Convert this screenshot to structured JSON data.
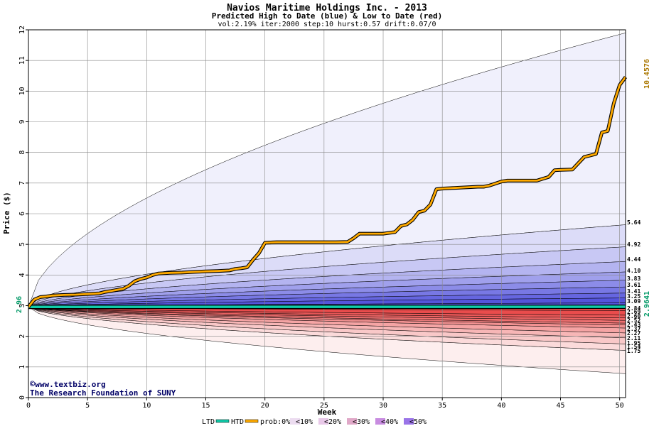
{
  "chart_data": {
    "type": "area",
    "title": "Navios Maritime Holdings Inc. - 2013",
    "subtitle": "Predicted High to Date (blue) &  Low to Date (red)",
    "params": "vol:2.19% iter:2000 step:10 hurst:0.57 drift:0.07/0",
    "xlabel": "Week",
    "ylabel": "Price ($)",
    "xlim": [
      0,
      50.5
    ],
    "ylim": [
      0,
      12
    ],
    "x_ticks": [
      0,
      5,
      10,
      15,
      20,
      25,
      30,
      35,
      40,
      45,
      50
    ],
    "y_ticks": [
      0,
      1,
      2,
      3,
      4,
      5,
      6,
      7,
      8,
      9,
      10,
      11,
      12
    ],
    "grid": true,
    "start_price": 2.96,
    "start_label": "2.96",
    "htd_label": "10.4576",
    "ltd_label": "2.9641",
    "htd_color": "#aa7700",
    "ltd_color": "#009966",
    "right_labels": [
      "5.64",
      "4.92",
      "4.44",
      "4.10",
      "3.83",
      "3.61",
      "3.41",
      "3.25",
      "3.09",
      "2.84",
      "2.69",
      "2.60",
      "2.52",
      "2.43",
      "2.37",
      "2.27",
      "2.11",
      "1.95",
      "1.75",
      "1.54"
    ],
    "upper_bands_final": [
      11.9,
      5.64,
      4.92,
      4.44,
      4.1,
      3.83,
      3.61,
      3.41,
      3.25,
      3.09
    ],
    "lower_bands_final": [
      0.78,
      1.54,
      1.75,
      1.95,
      2.11,
      2.27,
      2.37,
      2.43,
      2.52,
      2.6,
      2.69,
      2.84
    ],
    "upper_colors": [
      "#f0f0fc",
      "#dcdcf8",
      "#c8c8f4",
      "#b4b4f0",
      "#a0a0ec",
      "#8c8ce8",
      "#7878e4",
      "#6666e0",
      "#5555dc"
    ],
    "lower_colors": [
      "#fdeeee",
      "#fbdada",
      "#f9c8c8",
      "#f7b6b6",
      "#f5a4a4",
      "#f39292",
      "#f18080",
      "#ef7070",
      "#ed6464",
      "#eb5858",
      "#e94c4c"
    ],
    "htd_series": {
      "x": [
        0,
        0.5,
        1,
        1.5,
        2,
        3,
        4,
        5,
        6,
        6.5,
        7,
        8,
        8.5,
        9,
        9.5,
        10,
        10.5,
        11,
        12,
        13,
        14,
        15,
        16,
        17,
        17.5,
        18,
        18.5,
        19,
        19.5,
        20,
        21,
        22,
        23,
        24,
        25,
        26,
        27,
        27.5,
        28,
        29,
        30,
        31,
        31.5,
        32,
        32.5,
        33,
        33.5,
        34,
        34.5,
        35,
        36,
        37,
        38,
        38.5,
        39,
        40,
        40.5,
        41,
        42,
        43,
        44,
        44.5,
        45,
        46,
        47,
        47.5,
        48,
        48.5,
        49,
        49.5,
        50,
        50.5
      ],
      "y": [
        2.96,
        3.2,
        3.28,
        3.3,
        3.33,
        3.35,
        3.36,
        3.38,
        3.4,
        3.45,
        3.48,
        3.55,
        3.65,
        3.8,
        3.87,
        3.92,
        4.0,
        4.05,
        4.07,
        4.08,
        4.1,
        4.12,
        4.13,
        4.15,
        4.2,
        4.22,
        4.25,
        4.5,
        4.72,
        5.05,
        5.07,
        5.07,
        5.07,
        5.07,
        5.07,
        5.07,
        5.08,
        5.2,
        5.35,
        5.35,
        5.35,
        5.4,
        5.6,
        5.65,
        5.8,
        6.05,
        6.1,
        6.3,
        6.8,
        6.82,
        6.84,
        6.86,
        6.88,
        6.88,
        6.92,
        7.05,
        7.08,
        7.08,
        7.08,
        7.08,
        7.2,
        7.42,
        7.43,
        7.44,
        7.85,
        7.9,
        7.95,
        8.65,
        8.7,
        9.6,
        10.2,
        10.46
      ]
    },
    "ltd_series": {
      "x": [
        0,
        50.5
      ],
      "y": [
        2.96,
        2.9641
      ]
    },
    "credit_line1": "www.textbiz.org",
    "credit_line2": "The Research Foundation of SUNY",
    "legend": {
      "ltd": "LTD",
      "htd": "HTD",
      "prob": "prob:0%",
      "items": [
        "<10%",
        "<20%",
        "<30%",
        "<40%",
        "<50%"
      ],
      "colors": [
        "#ffffff",
        "#ecdcf0",
        "#e8c8e8",
        "#e0a8c8",
        "#c88ce0",
        "#9a74e8"
      ]
    }
  }
}
